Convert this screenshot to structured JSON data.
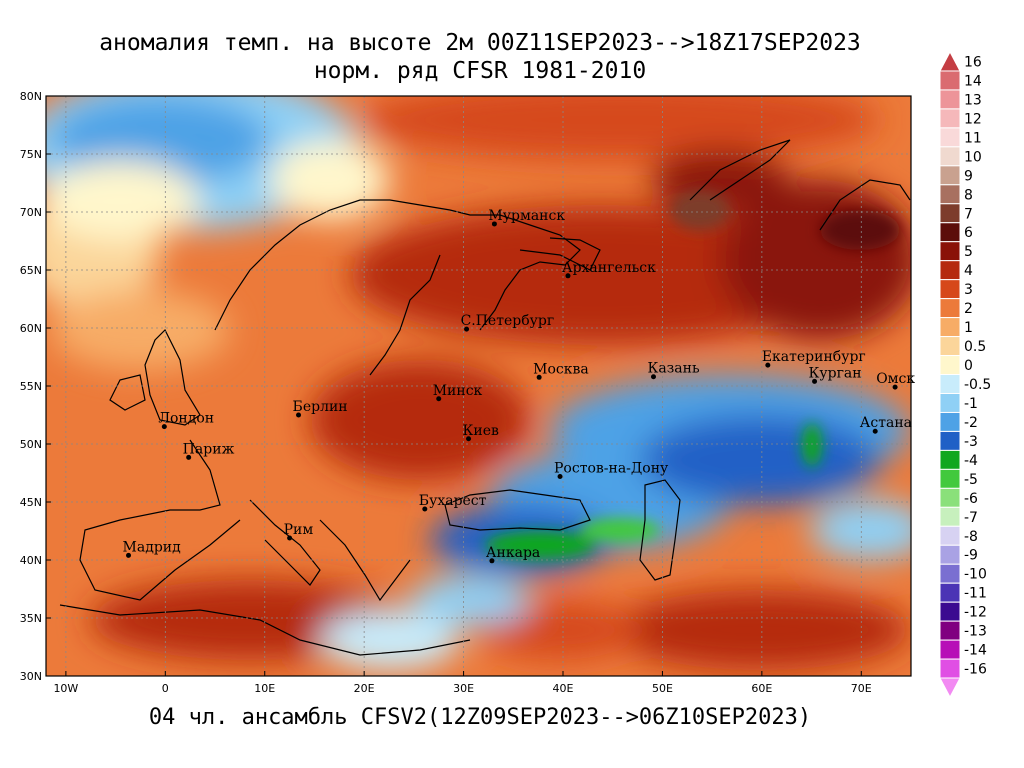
{
  "title_line1": "аномалия темп. на высоте 2м 00Z11SEP2023-->18Z17SEP2023",
  "title_line2": "норм. ряд CFSR 1981-2010",
  "footer": "04 чл. ансамбль CFSV2(12Z09SEP2023-->06Z10SEP2023)",
  "lat_labels": [
    "80N",
    "75N",
    "70N",
    "65N",
    "60N",
    "55N",
    "50N",
    "45N",
    "40N",
    "35N",
    "30N"
  ],
  "lon_labels": [
    "10W",
    "0",
    "10E",
    "20E",
    "30E",
    "40E",
    "50E",
    "60E",
    "70E"
  ],
  "cities": [
    {
      "name": "Мурманск",
      "lon": 33.1,
      "lat": 68.97
    },
    {
      "name": "Архангельск",
      "lon": 40.5,
      "lat": 64.5
    },
    {
      "name": "С.Петербург",
      "lon": 30.3,
      "lat": 59.9
    },
    {
      "name": "Москва",
      "lon": 37.6,
      "lat": 55.75
    },
    {
      "name": "Казань",
      "lon": 49.1,
      "lat": 55.8
    },
    {
      "name": "Екатеринбург",
      "lon": 60.6,
      "lat": 56.8
    },
    {
      "name": "Курган",
      "lon": 65.3,
      "lat": 55.4
    },
    {
      "name": "Омск",
      "lon": 73.4,
      "lat": 54.9
    },
    {
      "name": "Астана",
      "lon": 71.4,
      "lat": 51.1
    },
    {
      "name": "Минск",
      "lon": 27.5,
      "lat": 53.9
    },
    {
      "name": "Киев",
      "lon": 30.5,
      "lat": 50.45
    },
    {
      "name": "Берлин",
      "lon": 13.4,
      "lat": 52.5
    },
    {
      "name": "Лондон",
      "lon": -0.1,
      "lat": 51.5
    },
    {
      "name": "Париж",
      "lon": 2.35,
      "lat": 48.85
    },
    {
      "name": "Ростов-на-Дону",
      "lon": 39.7,
      "lat": 47.2
    },
    {
      "name": "Бухарест",
      "lon": 26.1,
      "lat": 44.4
    },
    {
      "name": "Рим",
      "lon": 12.5,
      "lat": 41.9
    },
    {
      "name": "Мадрид",
      "lon": -3.7,
      "lat": 40.4
    },
    {
      "name": "Анкара",
      "lon": 32.85,
      "lat": 39.93
    }
  ],
  "colorbar": {
    "labels": [
      "16",
      "14",
      "13",
      "12",
      "11",
      "10",
      "9",
      "8",
      "7",
      "6",
      "5",
      "4",
      "3",
      "2",
      "1",
      "0.5",
      "0",
      "-0.5",
      "-1",
      "-2",
      "-3",
      "-4",
      "-5",
      "-6",
      "-7",
      "-8",
      "-9",
      "-10",
      "-11",
      "-12",
      "-13",
      "-14",
      "-16"
    ],
    "colors": [
      "#c43e44",
      "#da6b70",
      "#ed9499",
      "#f5b8ba",
      "#f9d9d9",
      "#f0d9cf",
      "#c9a18f",
      "#a87060",
      "#7d3c2c",
      "#5c0e0a",
      "#8a1208",
      "#b52a0e",
      "#d6481a",
      "#ec7a3a",
      "#f7ac66",
      "#fbd59a",
      "#fff7cc",
      "#c8ecfb",
      "#8fd0f5",
      "#4ea2e6",
      "#2060c6",
      "#11a71e",
      "#42c93d",
      "#8ae07a",
      "#c7f0bd",
      "#d7d2f2",
      "#a9a2e4",
      "#7a6fd1",
      "#4b34b5",
      "#3b0a90",
      "#800080",
      "#b70fb7",
      "#e04fe4",
      "#f28af2"
    ]
  },
  "map": {
    "lon_range": [
      -12,
      75
    ],
    "lat_range": [
      30,
      80
    ],
    "projection": "lat-lon"
  }
}
